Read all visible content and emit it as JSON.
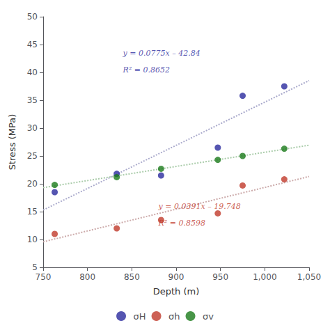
{
  "chart_data": {
    "type": "scatter",
    "xlabel": "Depth (m)",
    "ylabel": "Stress (MPa)",
    "xlim": [
      750,
      1050
    ],
    "ylim": [
      5,
      50
    ],
    "xticks": [
      750,
      800,
      850,
      900,
      950,
      1000,
      1050
    ],
    "yticks": [
      5,
      10,
      15,
      20,
      25,
      30,
      35,
      40,
      45,
      50
    ],
    "grid": false,
    "legend": "bottom",
    "series": [
      {
        "name": "σH",
        "type": "scatter",
        "marker": "circle",
        "color": "#2b2b9e",
        "x": [
          763,
          833,
          883,
          947,
          975,
          1022
        ],
        "values": [
          18.5,
          21.8,
          21.5,
          26.5,
          35.8,
          37.5
        ]
      },
      {
        "name": "σh",
        "type": "scatter",
        "marker": "circle",
        "color": "#c0392b",
        "x": [
          763,
          833,
          883,
          947,
          975,
          1022
        ],
        "values": [
          11.0,
          12.0,
          13.5,
          14.7,
          19.7,
          20.8
        ]
      },
      {
        "name": "σv",
        "type": "scatter",
        "marker": "circle",
        "color": "#1a7a1a",
        "x": [
          763,
          833,
          883,
          947,
          975,
          1022
        ],
        "values": [
          19.8,
          21.2,
          22.7,
          24.3,
          25.0,
          26.3
        ]
      },
      {
        "type": "line",
        "line_style": "dotted",
        "color": "#aaaacc",
        "x": [
          750,
          1050
        ],
        "values": [
          15.285,
          38.535
        ]
      },
      {
        "type": "line",
        "line_style": "dotted",
        "color": "#ccaaaa",
        "x": [
          750,
          1050
        ],
        "values": [
          9.577,
          21.307
        ]
      },
      {
        "type": "line",
        "line_style": "dotted",
        "color": "#aaccaa",
        "x": [
          750,
          1050
        ],
        "values": [
          19.31,
          26.93
        ]
      }
    ],
    "annotations": [
      {
        "text": "y = 0.0775x – 42.84",
        "x": 840,
        "y": 43.5,
        "color": "#2b2b9e"
      },
      {
        "text": "R² = 0.8652",
        "x": 840,
        "y": 40.5,
        "color": "#2b2b9e"
      },
      {
        "text": "y = 0.0391x – 19.748",
        "x": 880,
        "y": 16.0,
        "color": "#c0392b"
      },
      {
        "text": "R² = 0.8598",
        "x": 880,
        "y": 13.0,
        "color": "#c0392b"
      }
    ]
  }
}
